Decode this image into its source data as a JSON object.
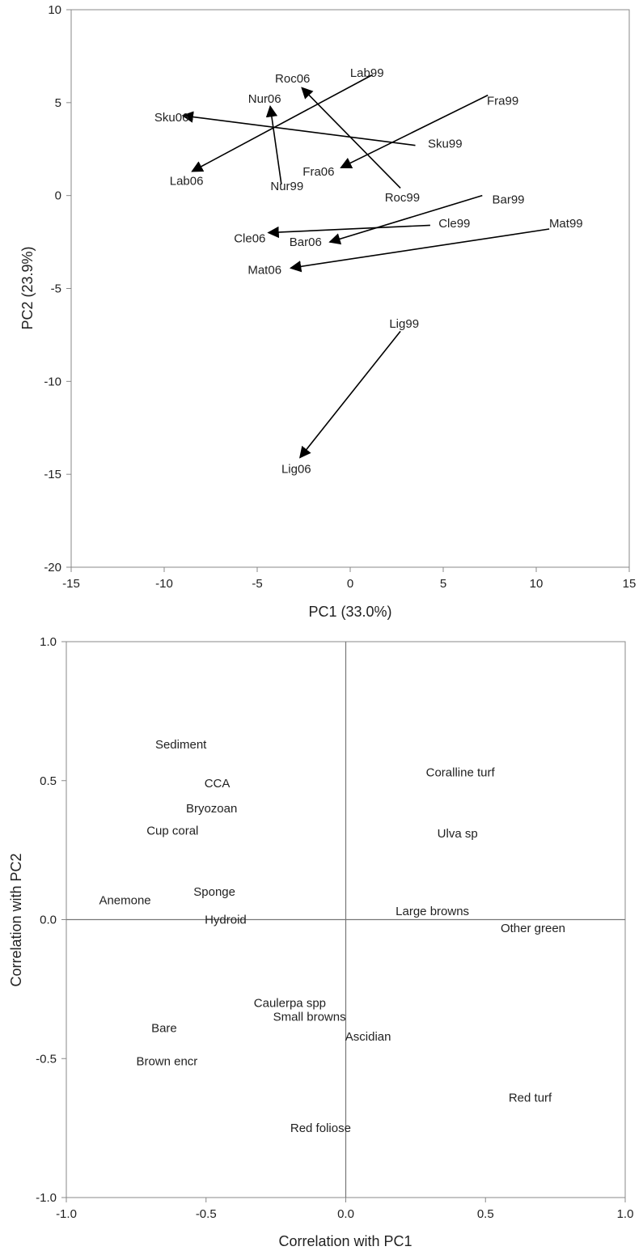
{
  "chart_data": [
    {
      "type": "scatter",
      "title": "",
      "xlabel": "PC1 (33.0%)",
      "ylabel": "PC2 (23.9%)",
      "xlim": [
        -15,
        15
      ],
      "ylim": [
        -20,
        10
      ],
      "xticks": [
        "-15",
        "-10",
        "-5",
        "0",
        "5",
        "10",
        "15"
      ],
      "yticks": [
        "10",
        "5",
        "0",
        "-5",
        "-10",
        "-15",
        "-20"
      ],
      "grid": false,
      "arrows": [
        {
          "from": "Lab99",
          "to": "Lab06",
          "x0": 1.2,
          "y0": 6.5,
          "x1": -8.5,
          "y1": 1.3
        },
        {
          "from": "Roc99",
          "to": "Roc06",
          "x0": 2.7,
          "y0": 0.4,
          "x1": -2.6,
          "y1": 5.8
        },
        {
          "from": "Nur99",
          "to": "Nur06",
          "x0": -3.7,
          "y0": 0.6,
          "x1": -4.3,
          "y1": 4.8
        },
        {
          "from": "Sku99",
          "to": "Sku06",
          "x0": 3.5,
          "y0": 2.7,
          "x1": -9.0,
          "y1": 4.3
        },
        {
          "from": "Fra99",
          "to": "Fra06",
          "x0": 7.4,
          "y0": 5.4,
          "x1": -0.5,
          "y1": 1.5
        },
        {
          "from": "Bar99",
          "to": "Bar06",
          "x0": 7.1,
          "y0": 0.0,
          "x1": -1.1,
          "y1": -2.5
        },
        {
          "from": "Cle99",
          "to": "Cle06",
          "x0": 4.3,
          "y0": -1.6,
          "x1": -4.4,
          "y1": -2.0
        },
        {
          "from": "Mat99",
          "to": "Mat06",
          "x0": 10.7,
          "y0": -1.8,
          "x1": -3.2,
          "y1": -3.9
        },
        {
          "from": "Lig99",
          "to": "Lig06",
          "x0": 2.7,
          "y0": -7.3,
          "x1": -2.7,
          "y1": -14.1
        }
      ],
      "labels": [
        {
          "text": "Lab99",
          "x": 0.9,
          "y": 6.6
        },
        {
          "text": "Roc06",
          "x": -3.1,
          "y": 6.3
        },
        {
          "text": "Nur06",
          "x": -4.6,
          "y": 5.2
        },
        {
          "text": "Sku06",
          "x": -9.6,
          "y": 4.2
        },
        {
          "text": "Fra99",
          "x": 8.2,
          "y": 5.1
        },
        {
          "text": "Sku99",
          "x": 5.1,
          "y": 2.8
        },
        {
          "text": "Fra06",
          "x": -1.7,
          "y": 1.3
        },
        {
          "text": "Lab06",
          "x": -8.8,
          "y": 0.8
        },
        {
          "text": "Nur99",
          "x": -3.4,
          "y": 0.5
        },
        {
          "text": "Roc99",
          "x": 2.8,
          "y": -0.1
        },
        {
          "text": "Bar99",
          "x": 8.5,
          "y": -0.2
        },
        {
          "text": "Cle99",
          "x": 5.6,
          "y": -1.5
        },
        {
          "text": "Mat99",
          "x": 11.6,
          "y": -1.5
        },
        {
          "text": "Cle06",
          "x": -5.4,
          "y": -2.3
        },
        {
          "text": "Bar06",
          "x": -2.4,
          "y": -2.5
        },
        {
          "text": "Mat06",
          "x": -4.6,
          "y": -4.0
        },
        {
          "text": "Lig99",
          "x": 2.9,
          "y": -6.9
        },
        {
          "text": "Lig06",
          "x": -2.9,
          "y": -14.7
        }
      ]
    },
    {
      "type": "scatter",
      "title": "",
      "xlabel": "Correlation with PC1",
      "ylabel": "Correlation with PC2",
      "xlim": [
        -1.0,
        1.0
      ],
      "ylim": [
        -1.0,
        1.0
      ],
      "xticks": [
        "-1.0",
        "-0.5",
        "0.0",
        "0.5",
        "1.0"
      ],
      "yticks": [
        "1.0",
        "0.5",
        "0.0",
        "-0.5",
        "-1.0"
      ],
      "grid": false,
      "reference_lines": {
        "x": 0.0,
        "y": 0.0
      },
      "labels": [
        {
          "text": "Sediment",
          "x": -0.59,
          "y": 0.63
        },
        {
          "text": "CCA",
          "x": -0.46,
          "y": 0.49
        },
        {
          "text": "Coralline turf",
          "x": 0.41,
          "y": 0.53
        },
        {
          "text": "Bryozoan",
          "x": -0.48,
          "y": 0.4
        },
        {
          "text": "Cup coral",
          "x": -0.62,
          "y": 0.32
        },
        {
          "text": "Ulva sp",
          "x": 0.4,
          "y": 0.31
        },
        {
          "text": "Sponge",
          "x": -0.47,
          "y": 0.1
        },
        {
          "text": "Anemone",
          "x": -0.79,
          "y": 0.07
        },
        {
          "text": "Large browns",
          "x": 0.31,
          "y": 0.03
        },
        {
          "text": "Hydroid",
          "x": -0.43,
          "y": 0.0
        },
        {
          "text": "Other green",
          "x": 0.67,
          "y": -0.03
        },
        {
          "text": "Caulerpa spp",
          "x": -0.2,
          "y": -0.3
        },
        {
          "text": "Small browns",
          "x": -0.13,
          "y": -0.35
        },
        {
          "text": "Bare",
          "x": -0.65,
          "y": -0.39
        },
        {
          "text": "Ascidian",
          "x": 0.08,
          "y": -0.42
        },
        {
          "text": "Brown encr",
          "x": -0.64,
          "y": -0.51
        },
        {
          "text": "Red turf",
          "x": 0.66,
          "y": -0.64
        },
        {
          "text": "Red foliose",
          "x": -0.09,
          "y": -0.75
        }
      ]
    }
  ]
}
